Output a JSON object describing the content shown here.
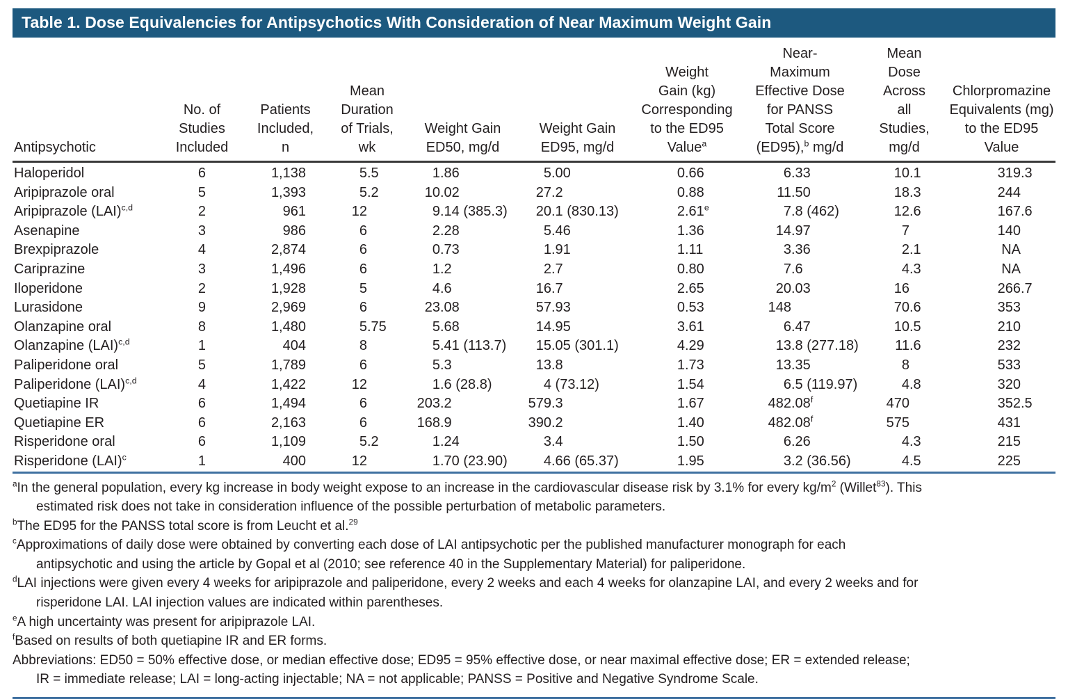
{
  "title": "Table 1. Dose Equivalencies for Antipsychotics With Consideration of Near Maximum Weight Gain",
  "colors": {
    "title_bar_background": "#1d597f",
    "title_text": "#ffffff",
    "header_rule": "#3a3a3a",
    "blue_rule": "#3f70a0",
    "body_text": "#231f20"
  },
  "table": {
    "columns": [
      {
        "label": "Antipsychotic"
      },
      {
        "label": "No. of\nStudies\nIncluded"
      },
      {
        "label": "Patients\nIncluded,\nn"
      },
      {
        "label": "Mean\nDuration\nof Trials,\nwk"
      },
      {
        "label": "Weight Gain\nED50, mg/d"
      },
      {
        "label": "Weight Gain\nED95, mg/d"
      },
      {
        "label": "Weight\nGain (kg)\nCorresponding\nto the ED95\nValue{a}"
      },
      {
        "label": "Near-\nMaximum\nEffective Dose\nfor PANSS\nTotal Score\n(ED95),{b} mg/d"
      },
      {
        "label": "Mean\nDose\nAcross\nall\nStudies,\nmg/d"
      },
      {
        "label": "Chlorpromazine\nEquivalents (mg)\nto the ED95\nValue"
      }
    ],
    "rows": [
      [
        "Haloperidol",
        "6",
        "1,138",
        "5.5",
        "1.86",
        "5.00",
        "0.66",
        "6.33",
        "10.1",
        "319.3"
      ],
      [
        "Aripiprazole oral",
        "5",
        "1,393",
        "5.2",
        "10.02",
        "27.2",
        "0.88",
        "11.50",
        "18.3",
        "244"
      ],
      [
        "Aripiprazole (LAI){c,d}",
        "2",
        "961",
        "12",
        "9.14 (385.3)",
        "20.1 (830.13)",
        "2.61{e}",
        "7.8 (462)",
        "12.6",
        "167.6"
      ],
      [
        "Asenapine",
        "3",
        "986",
        "6",
        "2.28",
        "5.46",
        "1.36",
        "14.97",
        "7",
        "140"
      ],
      [
        "Brexpiprazole",
        "4",
        "2,874",
        "6",
        "0.73",
        "1.91",
        "1.11",
        "3.36",
        "2.1",
        "NA"
      ],
      [
        "Cariprazine",
        "3",
        "1,496",
        "6",
        "1.2",
        "2.7",
        "0.80",
        "7.6",
        "4.3",
        "NA"
      ],
      [
        "Iloperidone",
        "2",
        "1,928",
        "5",
        "4.6",
        "16.7",
        "2.65",
        "20.03",
        "16",
        "266.7"
      ],
      [
        "Lurasidone",
        "9",
        "2,969",
        "6",
        "23.08",
        "57.93",
        "0.53",
        "148",
        "70.6",
        "353"
      ],
      [
        "Olanzapine oral",
        "8",
        "1,480",
        "5.75",
        "5.68",
        "14.95",
        "3.61",
        "6.47",
        "10.5",
        "210"
      ],
      [
        "Olanzapine (LAI){c,d}",
        "1",
        "404",
        "8",
        "5.41 (113.7)",
        "15.05 (301.1)",
        "4.29",
        "13.8 (277.18)",
        "11.6",
        "232"
      ],
      [
        "Paliperidone oral",
        "5",
        "1,789",
        "6",
        "5.3",
        "13.8",
        "1.73",
        "13.35",
        "8",
        "533"
      ],
      [
        "Paliperidone (LAI){c,d}",
        "4",
        "1,422",
        "12",
        "1.6 (28.8)",
        "4 (73.12)",
        "1.54",
        "6.5 (119.97)",
        "4.8",
        "320"
      ],
      [
        "Quetiapine IR",
        "6",
        "1,494",
        "6",
        "203.2",
        "579.3",
        "1.67",
        "482.08{f}",
        "470",
        "352.5"
      ],
      [
        "Quetiapine ER",
        "6",
        "2,163",
        "6",
        "168.9",
        "390.2",
        "1.40",
        "482.08{f}",
        "575",
        "431"
      ],
      [
        "Risperidone oral",
        "6",
        "1,109",
        "5.2",
        "1.24",
        "3.4",
        "1.50",
        "6.26",
        "4.3",
        "215"
      ],
      [
        "Risperidone (LAI){c}",
        "1",
        "400",
        "12",
        "1.70 (23.90)",
        "4.66 (65.37)",
        "1.95",
        "3.2 (36.56)",
        "4.5",
        "225"
      ]
    ]
  },
  "footnotes": [
    {
      "marker": "a",
      "text": "In the general population, every kg increase in body weight expose to an increase in the cardiovascular disease risk by 3.1% for every kg/m{2} (Willet{83}). This\nestimated risk does not take in consideration influence of the possible perturbation of metabolic parameters."
    },
    {
      "marker": "b",
      "text": "The ED95 for the PANSS total score is from Leucht et al.{29}"
    },
    {
      "marker": "c",
      "text": "Approximations of daily dose were obtained by converting each dose of LAI antipsychotic per the published manufacturer monograph for each\nantipsychotic and using the article by Gopal et al (2010; see reference 40 in the Supplementary Material) for paliperidone."
    },
    {
      "marker": "d",
      "text": "LAI injections were given every 4 weeks for aripiprazole and paliperidone, every 2 weeks and each 4 weeks for olanzapine LAI, and every 2 weeks and for\nrisperidone LAI. LAI injection values are indicated within parentheses."
    },
    {
      "marker": "e",
      "text": "A high uncertainty was present for aripiprazole LAI."
    },
    {
      "marker": "f",
      "text": "Based on results of both quetiapine IR and ER forms."
    },
    {
      "marker": "",
      "text": "Abbreviations: ED50 = 50% effective dose, or median effective dose; ED95 = 95% effective dose, or near maximal effective dose; ER = extended release;\nIR = immediate release; LAI = long-acting injectable; NA = not applicable; PANSS = Positive and Negative Syndrome Scale."
    }
  ]
}
